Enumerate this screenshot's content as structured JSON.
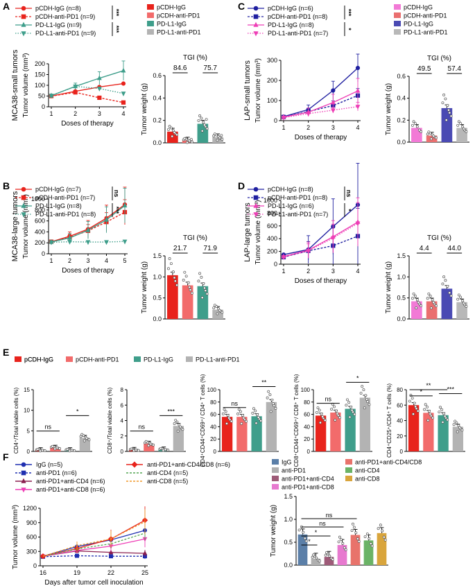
{
  "colors": {
    "cdh_igg": "#e8231c",
    "cdh_apd1": "#f26b6b",
    "pdl1_igg": "#3f9e8b",
    "pdl1_apd1": "#b3b3b3",
    "lap_cdh_igg": "#1f1fa0",
    "lap_cdh_apd1": "#1f1fa0",
    "lap_pdl1_igg": "#ee3fb6",
    "lap_pdl1_apd1": "#ee3fb6",
    "lap_bar_cdh_igg": "#f27ad6",
    "lap_bar_cdh_apd1": "#ea6f6f",
    "lap_bar_pdl1_igg": "#4a4ab3",
    "lap_bar_pdl1_apd1": "#b8b8b8",
    "f_igg": "#1f2fb0",
    "f_apd1": "#1f2fb0",
    "f_apd1_cd4": "#8a1f4f",
    "f_apd1_cd8": "#ee3fb6",
    "f_apd1_cd4cd8": "#e8231c",
    "f_cd4": "#53a653",
    "f_cd8": "#f0982a",
    "f_bar_igg": "#5b7fa8",
    "f_bar_apd1": "#b0b0b0",
    "f_bar_apd1_cd4": "#9e5b78",
    "f_bar_apd1_cd8": "#e779cf",
    "f_bar_apd1_cd4cd8": "#e8736b",
    "f_bar_cd4": "#6bb366",
    "f_bar_cd8": "#d9a53c"
  },
  "panel_letters": [
    "A",
    "B",
    "C",
    "D",
    "E",
    "F"
  ],
  "chart_data": [
    {
      "id": "A_line",
      "type": "line",
      "panel": "A",
      "title": "",
      "ylabel_row": "MCA38-small tumors",
      "ylabel": "Tumor volume (mm³)",
      "xlabel": "Doses of therapy",
      "x": [
        1,
        2,
        3,
        4
      ],
      "xticks": [
        "1",
        "2",
        "3",
        "4"
      ],
      "ylim": [
        0,
        200
      ],
      "yticks": [
        "0",
        "50",
        "100",
        "150",
        "200"
      ],
      "legend": [
        "pCDH-IgG (n=8)",
        "pCDH-anti-PD1 (n=9)",
        "PD-L1-IgG (n=9)",
        "PD-L1-anti-PD1 (n=9)"
      ],
      "significance": [
        "***",
        "***"
      ],
      "series": [
        {
          "name": "pCDH-IgG (n=8)",
          "values": [
            50,
            72,
            92,
            108
          ]
        },
        {
          "name": "pCDH-anti-PD1 (n=9)",
          "values": [
            50,
            67,
            42,
            20
          ]
        },
        {
          "name": "PD-L1-IgG (n=9)",
          "values": [
            52,
            95,
            133,
            168
          ]
        },
        {
          "name": "PD-L1-anti-PD1 (n=9)",
          "values": [
            52,
            95,
            85,
            62
          ]
        }
      ]
    },
    {
      "id": "A_bar",
      "type": "bar",
      "panel": "A",
      "title": "TGI (%)",
      "ylabel": "Tumor weight (g)",
      "categories": [
        "pCDH-IgG",
        "pCDH-anti-PD1",
        "PD-L1-IgG",
        "PD-L1-anti-PD1"
      ],
      "values": [
        0.1,
        0.02,
        0.17,
        0.05
      ],
      "ylim": [
        0,
        0.6
      ],
      "yticks": [
        "0.0",
        "0.2",
        "0.4",
        "0.6"
      ],
      "tgi": [
        "84.6",
        "75.7"
      ]
    },
    {
      "id": "B_line",
      "type": "line",
      "panel": "B",
      "title": "",
      "ylabel_row": "MCA38-large tumors",
      "ylabel": "Tumor volume (mm³)",
      "xlabel": "Doses of therapy",
      "x": [
        1,
        2,
        3,
        4,
        5
      ],
      "xticks": [
        "1",
        "2",
        "3",
        "4",
        "5"
      ],
      "ylim": [
        0,
        1000
      ],
      "yticks": [
        "0",
        "200",
        "400",
        "600",
        "800",
        "1000"
      ],
      "legend": [
        "pCDH-IgG (n=7)",
        "pCDH-anti-PD1 (n=7)",
        "PD-L1-IgG (n=8)",
        "PD-L1-anti-PD1 (n=8)"
      ],
      "significance": [
        "ns",
        "***"
      ],
      "series": [
        {
          "name": "pCDH-IgG (n=7)",
          "values": [
            220,
            320,
            450,
            650,
            900
          ]
        },
        {
          "name": "pCDH-anti-PD1 (n=7)",
          "values": [
            220,
            300,
            420,
            580,
            760
          ]
        },
        {
          "name": "PD-L1-IgG (n=8)",
          "values": [
            215,
            290,
            430,
            620,
            880
          ]
        },
        {
          "name": "PD-L1-anti-PD1 (n=8)",
          "values": [
            210,
            220,
            215,
            215,
            225
          ]
        }
      ]
    },
    {
      "id": "B_bar",
      "type": "bar",
      "panel": "B",
      "title": "TGI (%)",
      "ylabel": "Tumor weight (g)",
      "categories": [
        "pCDH-IgG",
        "pCDH-anti-PD1",
        "PD-L1-IgG",
        "PD-L1-anti-PD1"
      ],
      "values": [
        1.04,
        0.8,
        0.78,
        0.22
      ],
      "ylim": [
        0,
        1.5
      ],
      "yticks": [
        "0.0",
        "0.5",
        "1.0",
        "1.5"
      ],
      "tgi": [
        "21.7",
        "71.9"
      ]
    },
    {
      "id": "C_line",
      "type": "line",
      "panel": "C",
      "title": "",
      "ylabel_row": "LAP-small tumors",
      "ylabel": "Tumor volume (mm³)",
      "xlabel": "Doses of therapy",
      "x": [
        1,
        2,
        3,
        4
      ],
      "xticks": [
        "1",
        "2",
        "3",
        "4"
      ],
      "ylim": [
        0,
        300
      ],
      "yticks": [
        "0",
        "100",
        "200",
        "300"
      ],
      "legend": [
        "pCDH-IgG (n=6)",
        "pCDH-anti-PD1 (n=8)",
        "PD-L1-IgG (n=8)",
        "PD-L1-anti-PD1 (n=7)"
      ],
      "significance": [
        "***",
        "*"
      ],
      "series": [
        {
          "name": "pCDH-IgG (n=6)",
          "values": [
            20,
            55,
            150,
            262
          ]
        },
        {
          "name": "pCDH-anti-PD1 (n=8)",
          "values": [
            18,
            45,
            75,
            125
          ]
        },
        {
          "name": "PD-L1-IgG (n=8)",
          "values": [
            18,
            42,
            90,
            148
          ]
        },
        {
          "name": "PD-L1-anti-PD1 (n=7)",
          "values": [
            15,
            35,
            52,
            70
          ]
        }
      ]
    },
    {
      "id": "C_bar",
      "type": "bar",
      "panel": "C",
      "title": "TGI (%)",
      "ylabel": "Tumor weight (g)",
      "categories": [
        "pCDH-IgG",
        "pCDH-anti-PD1",
        "PD-L1-IgG",
        "PD-L1-anti-PD1"
      ],
      "values": [
        0.13,
        0.06,
        0.31,
        0.13
      ],
      "ylim": [
        0,
        0.6
      ],
      "yticks": [
        "0.0",
        "0.2",
        "0.4",
        "0.6"
      ],
      "tgi": [
        "49.5",
        "57.4"
      ]
    },
    {
      "id": "D_line",
      "type": "line",
      "panel": "D",
      "title": "",
      "ylabel_row": "LAP-large tumors",
      "ylabel": "Tumor volume (mm³)",
      "xlabel": "Doses of therapy",
      "x": [
        1,
        2,
        3,
        4
      ],
      "xticks": [
        "1",
        "2",
        "3",
        "4"
      ],
      "ylim": [
        0,
        1000
      ],
      "yticks": [
        "0",
        "200",
        "400",
        "600",
        "800",
        "1000"
      ],
      "legend": [
        "pCDH-IgG (n=8)",
        "pCDH-anti-PD1 (n=8)",
        "PD-L1-IgG (n=6)",
        "PD-L1-anti-PD1 (n=7)"
      ],
      "significance": [
        "ns",
        "*"
      ],
      "series": [
        {
          "name": "pCDH-IgG (n=8)",
          "values": [
            150,
            230,
            590,
            930
          ]
        },
        {
          "name": "pCDH-anti-PD1 (n=8)",
          "values": [
            110,
            210,
            290,
            440
          ]
        },
        {
          "name": "PD-L1-IgG (n=6)",
          "values": [
            120,
            220,
            430,
            660
          ]
        },
        {
          "name": "PD-L1-anti-PD1 (n=7)",
          "values": [
            110,
            210,
            410,
            640
          ]
        }
      ]
    },
    {
      "id": "D_bar",
      "type": "bar",
      "panel": "D",
      "title": "TGI (%)",
      "ylabel": "Tumor weight (g)",
      "categories": [
        "pCDH-IgG",
        "pCDH-anti-PD1",
        "PD-L1-IgG",
        "PD-L1-anti-PD1"
      ],
      "values": [
        0.42,
        0.42,
        0.72,
        0.4
      ],
      "ylim": [
        0,
        1.5
      ],
      "yticks": [
        "0.0",
        "0.5",
        "1.0",
        "1.5"
      ],
      "tgi": [
        "4.4",
        "44.0"
      ]
    },
    {
      "id": "E",
      "type": "bar",
      "panel": "E",
      "legend": [
        "pCDH-IgG",
        "pCDH-anti-PD1",
        "PD-L1-IgG",
        "PD-L1-anti-PD1"
      ],
      "subplots": [
        {
          "ylabel": "CD4⁺/Total viable cells (%)",
          "ylim": [
            0,
            15
          ],
          "yticks": [
            "0",
            "5",
            "10",
            "15"
          ],
          "values": [
            0.3,
            0.9,
            0.3,
            3.3
          ],
          "sig": [
            {
              "a": 0,
              "b": 1,
              "label": "ns"
            },
            {
              "a": 2,
              "b": 3,
              "label": "*"
            }
          ]
        },
        {
          "ylabel": "CD8⁺/Total viable cells (%)",
          "ylim": [
            0,
            8
          ],
          "yticks": [
            "0",
            "2",
            "4",
            "6",
            "8"
          ],
          "values": [
            0.2,
            1.0,
            0.25,
            3.3
          ],
          "sig": [
            {
              "a": 0,
              "b": 1,
              "label": "ns"
            },
            {
              "a": 2,
              "b": 3,
              "label": "***"
            }
          ]
        },
        {
          "ylabel": "CD4⁺CD44⁺CD69⁺/ CD4⁺ T cells (%)",
          "ylim": [
            0,
            100
          ],
          "yticks": [
            "0",
            "20",
            "40",
            "60",
            "80",
            "100"
          ],
          "values": [
            56,
            56,
            57,
            80
          ],
          "sig": [
            {
              "a": 0,
              "b": 1,
              "label": "ns"
            },
            {
              "a": 2,
              "b": 3,
              "label": "**"
            }
          ]
        },
        {
          "ylabel": "CD8⁺CD44⁺CD69⁺/ CD8⁺ T cells (%)",
          "ylim": [
            0,
            100
          ],
          "yticks": [
            "0",
            "20",
            "40",
            "60",
            "80",
            "100"
          ],
          "values": [
            58,
            63,
            69,
            87
          ],
          "sig": [
            {
              "a": 0,
              "b": 1,
              "label": "ns"
            },
            {
              "a": 2,
              "b": 3,
              "label": "*"
            }
          ]
        },
        {
          "ylabel": "CD4⁺CD25⁺/CD4⁺ T cells (%)",
          "ylim": [
            0,
            80
          ],
          "yticks": [
            "0",
            "20",
            "40",
            "60",
            "80"
          ],
          "values": [
            60,
            50,
            47,
            32
          ],
          "sig": [
            {
              "a": 0,
              "b": 1,
              "label": "*"
            },
            {
              "a": 0,
              "b": 2,
              "label": "**"
            },
            {
              "a": 2,
              "b": 3,
              "label": "***"
            }
          ]
        }
      ]
    },
    {
      "id": "F_line",
      "type": "line",
      "panel": "F",
      "ylabel": "Tumor volume (mm³)",
      "xlabel": "Days after tumor cell inoculation",
      "x": [
        16,
        19,
        22,
        25
      ],
      "xticks": [
        "16",
        "19",
        "22",
        "25"
      ],
      "ylim": [
        0,
        1200
      ],
      "yticks": [
        "0",
        "300",
        "600",
        "900",
        "1200"
      ],
      "legend": [
        "IgG (n=5)",
        "anti-PD1 (n=6)",
        "anti-PD1+anti-CD4 (n=6)",
        "anti-PD1+anti-CD8 (n=6)",
        "anti-PD1+anti-CD4/CD8 (n=6)",
        "anti-CD4 (n=5)",
        "anti-CD8 (n=5)"
      ],
      "series": [
        {
          "name": "IgG (n=5)",
          "values": [
            200,
            400,
            540,
            740
          ]
        },
        {
          "name": "anti-PD1 (n=6)",
          "values": [
            190,
            210,
            200,
            200
          ]
        },
        {
          "name": "anti-PD1+anti-CD4 (n=6)",
          "values": [
            200,
            310,
            280,
            260
          ]
        },
        {
          "name": "anti-PD1+anti-CD8 (n=6)",
          "values": [
            200,
            320,
            410,
            560
          ]
        },
        {
          "name": "anti-PD1+anti-CD4/CD8 (n=6)",
          "values": [
            200,
            360,
            560,
            950
          ]
        },
        {
          "name": "anti-CD4 (n=5)",
          "values": [
            200,
            350,
            460,
            680
          ]
        },
        {
          "name": "anti-CD8 (n=5)",
          "values": [
            200,
            420,
            560,
            920
          ]
        }
      ]
    },
    {
      "id": "F_bar",
      "type": "bar",
      "panel": "F",
      "ylabel": "Tumor weight (g)",
      "categories": [
        "IgG",
        "anti-PD1",
        "anti-PD1+anti-CD4",
        "anti-PD1+anti-CD8",
        "anti-PD1+anti-CD4/CD8",
        "anti-CD4",
        "anti-CD8"
      ],
      "values": [
        0.67,
        0.14,
        0.18,
        0.44,
        0.66,
        0.54,
        0.7
      ],
      "ylim": [
        0,
        1.5
      ],
      "yticks": [
        "0.0",
        "0.5",
        "1.0",
        "1.5"
      ],
      "sig": [
        {
          "a": 0,
          "b": 1,
          "label": "*"
        },
        {
          "a": 0,
          "b": 2,
          "label": "*"
        },
        {
          "a": 0,
          "b": 3,
          "label": "ns"
        },
        {
          "a": 0,
          "b": 4,
          "label": "ns"
        }
      ]
    }
  ]
}
